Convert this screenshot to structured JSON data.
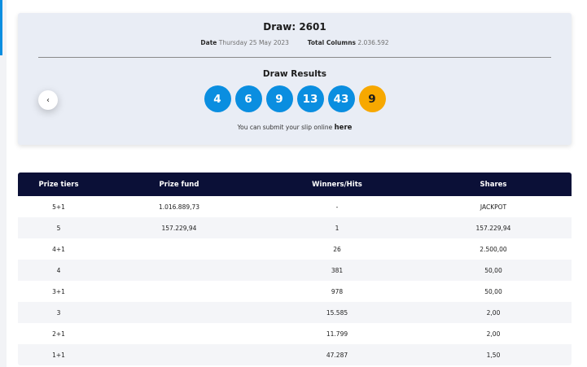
{
  "draw": {
    "title": "Draw: 2601",
    "date_label": "Date",
    "date_value": "Thursday 25 May 2023",
    "columns_label": "Total Columns",
    "columns_value": "2.036.592",
    "results_title": "Draw Results",
    "numbers": [
      "4",
      "6",
      "9",
      "13",
      "43"
    ],
    "bonus": "9",
    "submit_text": "You can submit your slip online",
    "submit_link": "here",
    "prev_icon": "chevron-left-icon"
  },
  "colors": {
    "ball": "#0a8ee0",
    "bonus_ball": "#f7a800",
    "table_header": "#0b1037"
  },
  "prize_table": {
    "headers": [
      "Prize tiers",
      "Prize fund",
      "Winners/Hits",
      "Shares"
    ],
    "rows": [
      {
        "tier": "5+1",
        "fund": "1.016.889,73",
        "winners": "-",
        "shares": "JACKPOT"
      },
      {
        "tier": "5",
        "fund": "157.229,94",
        "winners": "1",
        "shares": "157.229,94"
      },
      {
        "tier": "4+1",
        "fund": "",
        "winners": "26",
        "shares": "2.500,00"
      },
      {
        "tier": "4",
        "fund": "",
        "winners": "381",
        "shares": "50,00"
      },
      {
        "tier": "3+1",
        "fund": "",
        "winners": "978",
        "shares": "50,00"
      },
      {
        "tier": "3",
        "fund": "",
        "winners": "15.585",
        "shares": "2,00"
      },
      {
        "tier": "2+1",
        "fund": "",
        "winners": "11.799",
        "shares": "2,00"
      },
      {
        "tier": "1+1",
        "fund": "",
        "winners": "47.287",
        "shares": "1,50"
      }
    ]
  }
}
